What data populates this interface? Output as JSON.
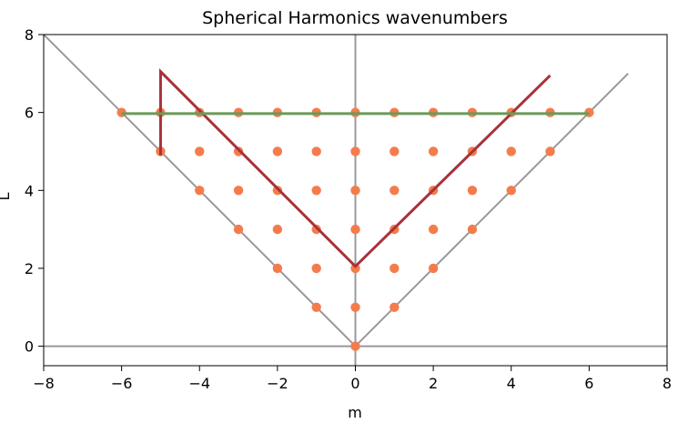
{
  "chart_data": {
    "type": "scatter",
    "title": "Spherical Harmonics wavenumbers",
    "xlabel": "m",
    "ylabel": "L",
    "xlim": [
      -8,
      8
    ],
    "ylim": [
      -0.5,
      8
    ],
    "xticks": [
      -8,
      -6,
      -4,
      -2,
      0,
      2,
      4,
      6,
      8
    ],
    "yticks": [
      0,
      2,
      4,
      6,
      8
    ],
    "xtick_labels": [
      "−8",
      "−6",
      "−4",
      "−2",
      "0",
      "2",
      "4",
      "6",
      "8"
    ],
    "ytick_labels": [
      "0",
      "2",
      "4",
      "6",
      "8"
    ],
    "grid": false,
    "colors": {
      "points": "#f47c4c",
      "reference_lines": "#999999",
      "truncation_red": "#a8323a",
      "truncation_green": "#6b9a58"
    },
    "points_rule": "all integer (m, L) with 0 <= L <= 6 and |m| <= L",
    "reference_lines": [
      {
        "x": [
          -8,
          0
        ],
        "y": [
          8,
          0
        ]
      },
      {
        "x": [
          0,
          7
        ],
        "y": [
          0,
          7
        ]
      },
      {
        "x": [
          0,
          0
        ],
        "y": [
          -0.5,
          8
        ]
      },
      {
        "x": [
          -8,
          8
        ],
        "y": [
          0,
          0
        ]
      }
    ],
    "series": [
      {
        "x": [
          -5,
          -5,
          0,
          5
        ],
        "y": [
          4.9,
          7.05,
          2.05,
          6.95
        ],
        "color": "#a8323a"
      },
      {
        "x": [
          -6,
          6
        ],
        "y": [
          5.97,
          5.97
        ],
        "color": "#6b9a58"
      }
    ]
  }
}
